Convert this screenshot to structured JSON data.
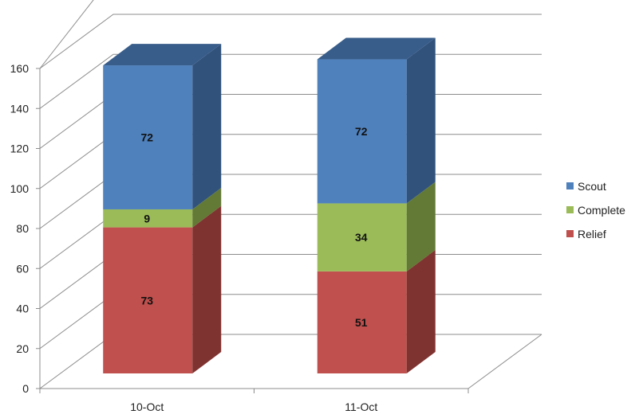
{
  "chart_data": {
    "type": "bar",
    "stacked": true,
    "three_d": true,
    "categories": [
      "10-Oct",
      "11-Oct"
    ],
    "series": [
      {
        "name": "Relief",
        "values": [
          73,
          51
        ],
        "color": "#C0504D",
        "side_color": "#7F3331",
        "top_color": "#A0423F"
      },
      {
        "name": "Complete",
        "values": [
          9,
          34
        ],
        "color": "#9BBB59",
        "side_color": "#627A35",
        "top_color": "#7F9A45"
      },
      {
        "name": "Scout",
        "values": [
          72,
          72
        ],
        "color": "#4F81BD",
        "side_color": "#31527B",
        "top_color": "#385D8A"
      }
    ],
    "ylim": [
      0,
      160
    ],
    "yticks": [
      0,
      20,
      40,
      60,
      80,
      100,
      120,
      140,
      160
    ],
    "grid": true,
    "legend_position": "right"
  }
}
